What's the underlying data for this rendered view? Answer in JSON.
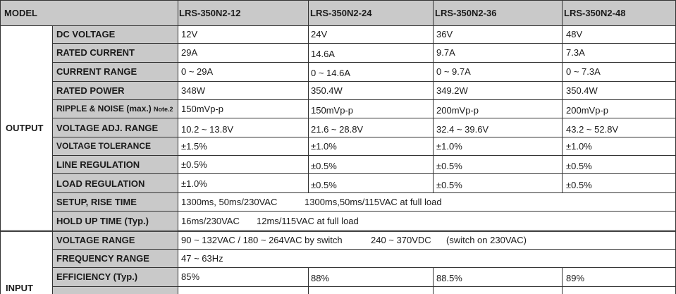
{
  "header": {
    "model": "MODEL",
    "models": [
      "LRS-350N2-12",
      "LRS-350N2-24",
      "LRS-350N2-36",
      "LRS-350N2-48"
    ]
  },
  "output": {
    "group_label": "OUTPUT",
    "rows": [
      {
        "label": "DC VOLTAGE",
        "values": [
          "12V",
          "24V",
          "36V",
          "48V"
        ]
      },
      {
        "label": "RATED CURRENT",
        "values": [
          "29A",
          "14.6A",
          "9.7A",
          "7.3A"
        ]
      },
      {
        "label": "CURRENT RANGE",
        "values": [
          "0 ~ 29A",
          "0 ~ 14.6A",
          "0 ~ 9.7A",
          "0 ~ 7.3A"
        ]
      },
      {
        "label": "RATED POWER",
        "values": [
          "348W",
          "350.4W",
          "349.2W",
          "350.4W"
        ]
      },
      {
        "label": "RIPPLE & NOISE (max.)",
        "note": "Note.2",
        "values": [
          "150mVp-p",
          "150mVp-p",
          "200mVp-p",
          "200mVp-p"
        ]
      },
      {
        "label": "VOLTAGE ADJ. RANGE",
        "values": [
          "10.2 ~ 13.8V",
          "21.6 ~ 28.8V",
          "32.4 ~ 39.6V",
          "43.2 ~ 52.8V"
        ]
      },
      {
        "label": "VOLTAGE TOLERANCE",
        "values": [
          "±1.5%",
          "±1.0%",
          "±1.0%",
          "±1.0%"
        ]
      },
      {
        "label": "LINE REGULATION",
        "values": [
          "±0.5%",
          "±0.5%",
          "±0.5%",
          "±0.5%"
        ]
      },
      {
        "label": "LOAD REGULATION",
        "values": [
          "±1.0%",
          "±0.5%",
          "±0.5%",
          "±0.5%"
        ]
      },
      {
        "label": "SETUP, RISE TIME",
        "span_a": "1300ms, 50ms/230VAC",
        "span_b": "1300ms,50ms/115VAC  at full load"
      },
      {
        "label": "HOLD UP TIME (Typ.)",
        "span_a": "16ms/230VAC",
        "span_b": "12ms/115VAC at full load"
      }
    ]
  },
  "input": {
    "group_label": "INPUT",
    "rows": [
      {
        "label": "VOLTAGE RANGE",
        "span_a": "90 ~ 132VAC / 180 ~ 264VAC by switch",
        "span_b": "240 ~ 370VDC",
        "span_c": "(switch on 230VAC)"
      },
      {
        "label": "FREQUENCY RANGE",
        "span_a": "47 ~ 63Hz"
      },
      {
        "label": "EFFICIENCY (Typ.)",
        "values": [
          "85%",
          "88%",
          "88.5%",
          "89%"
        ]
      }
    ]
  }
}
